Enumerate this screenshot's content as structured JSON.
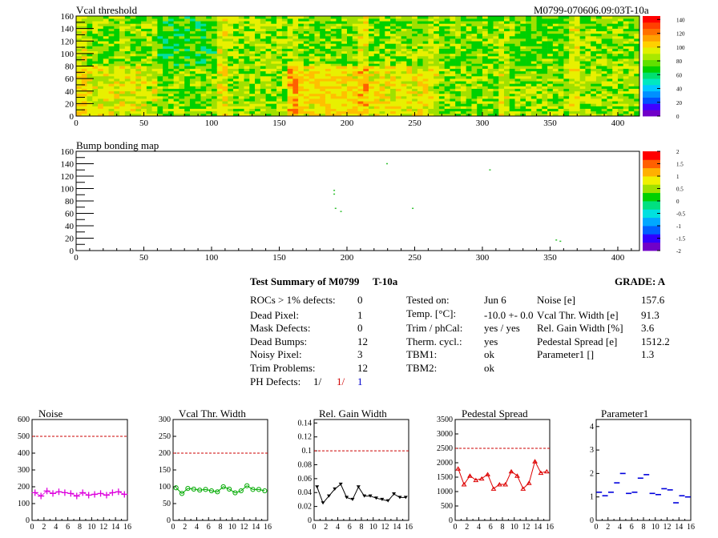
{
  "module_label": "M0799-070606.09:03T-10a",
  "map_axes": {
    "x_ticks": [
      "0",
      "50",
      "100",
      "150",
      "200",
      "250",
      "300",
      "350",
      "400"
    ],
    "y_ticks": [
      "0",
      "20",
      "40",
      "60",
      "80",
      "100",
      "120",
      "140",
      "160"
    ]
  },
  "vcal_colorbar_ticks": [
    "0",
    "20",
    "40",
    "60",
    "80",
    "100",
    "120",
    "140"
  ],
  "bump_colorbar_ticks": [
    "-2",
    "-1.5",
    "-1",
    "-0.5",
    "0",
    "0.5",
    "1",
    "1.5",
    "2"
  ],
  "summary": {
    "title_left": "Test Summary of M0799",
    "title_mid": "T-10a",
    "grade": "GRADE:  A",
    "col1": [
      {
        "label": "ROCs > 1% defects:",
        "value": "0"
      },
      {
        "label": "Dead Pixel:",
        "value": "1"
      },
      {
        "label": "Mask Defects:",
        "value": "0"
      },
      {
        "label": "Dead Bumps:",
        "value": "12"
      },
      {
        "label": "Noisy Pixel:",
        "value": "3"
      },
      {
        "label": "Trim Problems:",
        "value": "12"
      }
    ],
    "ph_label": "PH Defects:",
    "ph_values": [
      "1/",
      "1/",
      "1"
    ],
    "col2": [
      {
        "label": "Tested on:",
        "value": "Jun 6"
      },
      {
        "label": "Temp. [°C]:",
        "value": "-10.0 +- 0.0"
      },
      {
        "label": "Trim / phCal:",
        "value": "yes / yes"
      },
      {
        "label": "Therm. cycl.:",
        "value": "yes"
      },
      {
        "label": "TBM1:",
        "value": "ok"
      },
      {
        "label": "TBM2:",
        "value": "ok"
      }
    ],
    "col3": [
      {
        "label": "Noise [e]",
        "value": "157.6"
      },
      {
        "label": "Vcal Thr. Width [e]",
        "value": "91.3"
      },
      {
        "label": "Rel. Gain Width [%]",
        "value": "3.6"
      },
      {
        "label": "Pedestal Spread [e]",
        "value": "1512.2"
      },
      {
        "label": "Parameter1 []",
        "value": "1.3"
      }
    ]
  },
  "chart_data": [
    {
      "type": "heatmap",
      "title": "Vcal threshold",
      "xlim": [
        0,
        416
      ],
      "ylim": [
        0,
        160
      ],
      "color_range": [
        0,
        145
      ],
      "color_ticks": [
        0,
        20,
        40,
        60,
        80,
        100,
        120,
        140
      ],
      "note": "module map of 16 ROCs, values mostly 60-120"
    },
    {
      "type": "scatter",
      "title": "Bump bonding map",
      "xlim": [
        0,
        416
      ],
      "ylim": [
        0,
        160
      ],
      "color_range": [
        -2,
        2
      ],
      "color_ticks": [
        -2,
        -1.5,
        -1,
        -0.5,
        0,
        0.5,
        1,
        1.5,
        2
      ],
      "points": [
        {
          "x": 229,
          "y": 141
        },
        {
          "x": 305,
          "y": 131
        },
        {
          "x": 190,
          "y": 98
        },
        {
          "x": 190,
          "y": 92
        },
        {
          "x": 191,
          "y": 69
        },
        {
          "x": 195,
          "y": 64
        },
        {
          "x": 248,
          "y": 69
        },
        {
          "x": 354,
          "y": 18
        },
        {
          "x": 357,
          "y": 16
        }
      ]
    },
    {
      "type": "line",
      "title": "Noise",
      "color": "#dd00dd",
      "marker": "plus",
      "xlim": [
        0,
        16
      ],
      "ylim": [
        0,
        600
      ],
      "yticks": [
        0,
        100,
        200,
        300,
        400,
        500,
        600
      ],
      "limit": 500,
      "x": [
        0,
        1,
        2,
        3,
        4,
        5,
        6,
        7,
        8,
        9,
        10,
        11,
        12,
        13,
        14,
        15
      ],
      "values": [
        165,
        145,
        175,
        160,
        170,
        165,
        160,
        145,
        165,
        150,
        155,
        160,
        150,
        165,
        170,
        155
      ]
    },
    {
      "type": "line",
      "title": "Vcal Thr. Width",
      "color": "#00aa00",
      "marker": "circle",
      "xlim": [
        0,
        16
      ],
      "ylim": [
        0,
        300
      ],
      "yticks": [
        0,
        50,
        100,
        150,
        200,
        250,
        300
      ],
      "limit": 200,
      "x": [
        0,
        1,
        2,
        3,
        4,
        5,
        6,
        7,
        8,
        9,
        10,
        11,
        12,
        13,
        14,
        15
      ],
      "values": [
        97,
        80,
        95,
        93,
        90,
        92,
        88,
        85,
        100,
        93,
        82,
        88,
        103,
        92,
        92,
        88
      ]
    },
    {
      "type": "line",
      "title": "Rel. Gain Width",
      "color": "#000000",
      "marker": "triangle-down",
      "xlim": [
        0,
        16
      ],
      "ylim": [
        0,
        0.145
      ],
      "yticks": [
        0,
        0.02,
        0.04,
        0.06,
        0.08,
        0.1,
        0.12,
        0.14
      ],
      "limit": 0.1,
      "x": [
        0,
        1,
        2,
        3,
        4,
        5,
        6,
        7,
        8,
        9,
        10,
        11,
        12,
        13,
        14,
        15
      ],
      "values": [
        0.048,
        0.025,
        0.035,
        0.045,
        0.052,
        0.033,
        0.03,
        0.048,
        0.035,
        0.035,
        0.032,
        0.03,
        0.028,
        0.038,
        0.033,
        0.033
      ]
    },
    {
      "type": "line",
      "title": "Pedestal Spread",
      "color": "#dd0000",
      "marker": "triangle-up",
      "xlim": [
        0,
        16
      ],
      "ylim": [
        0,
        3500
      ],
      "yticks": [
        0,
        500,
        1000,
        1500,
        2000,
        2500,
        3000,
        3500
      ],
      "limit": 2500,
      "x": [
        0,
        1,
        2,
        3,
        4,
        5,
        6,
        7,
        8,
        9,
        10,
        11,
        12,
        13,
        14,
        15
      ],
      "values": [
        1800,
        1250,
        1550,
        1400,
        1450,
        1600,
        1100,
        1250,
        1250,
        1700,
        1550,
        1100,
        1300,
        2050,
        1650,
        1700
      ]
    },
    {
      "type": "scatter",
      "title": "Parameter1",
      "color": "#0000dd",
      "marker": "hbar",
      "xlim": [
        0,
        16
      ],
      "ylim": [
        0,
        4.3
      ],
      "yticks": [
        0,
        1,
        2,
        3,
        4
      ],
      "x": [
        0,
        1,
        2,
        3,
        4,
        5,
        6,
        7,
        8,
        9,
        10,
        11,
        12,
        13,
        14,
        15
      ],
      "values": [
        1.2,
        1.05,
        1.2,
        1.6,
        2.0,
        1.15,
        1.2,
        1.8,
        1.95,
        1.15,
        1.1,
        1.35,
        1.3,
        0.75,
        1.05,
        1.0
      ]
    }
  ]
}
